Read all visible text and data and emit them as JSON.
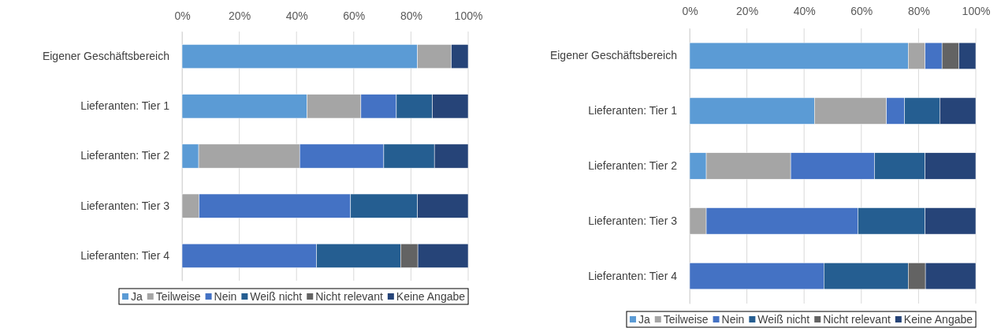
{
  "chart_data": [
    {
      "type": "bar",
      "orientation": "horizontal",
      "stacked": true,
      "grid": "x",
      "legend": "bottom",
      "categories": [
        "Eigener Geschäftsbereich",
        "Lieferanten: Tier 1",
        "Lieferanten: Tier 2",
        "Lieferanten: Tier 3",
        "Lieferanten: Tier 4"
      ],
      "xlim": [
        0,
        100
      ],
      "xticks": [
        {
          "value": 0,
          "label": "0%"
        },
        {
          "value": 20,
          "label": "20%"
        },
        {
          "value": 40,
          "label": "40%"
        },
        {
          "value": 60,
          "label": "60%"
        },
        {
          "value": 80,
          "label": "80%"
        },
        {
          "value": 100,
          "label": "100%"
        }
      ],
      "series": [
        {
          "name": "Ja",
          "color": "#5b9bd5",
          "values": [
            82.3,
            43.7,
            5.8,
            0,
            0
          ]
        },
        {
          "name": "Teilweise",
          "color": "#a5a5a5",
          "values": [
            11.8,
            18.8,
            35.3,
            5.9,
            0
          ]
        },
        {
          "name": "Nein",
          "color": "#4472c4",
          "values": [
            0,
            12.4,
            29.4,
            53.0,
            47.0
          ]
        },
        {
          "name": "Weiß nicht",
          "color": "#255e91",
          "values": [
            0,
            12.6,
            17.7,
            23.4,
            29.4
          ]
        },
        {
          "name": "Nicht relevant",
          "color": "#636363",
          "values": [
            0,
            0,
            0,
            0,
            6.0
          ]
        },
        {
          "name": "Keine Angabe",
          "color": "#264478",
          "values": [
            5.9,
            12.5,
            11.8,
            17.7,
            17.6
          ]
        }
      ]
    },
    {
      "type": "bar",
      "orientation": "horizontal",
      "stacked": true,
      "grid": "x",
      "legend": "bottom",
      "categories": [
        "Eigener Geschäftsbereich",
        "Lieferanten: Tier 1",
        "Lieferanten: Tier 2",
        "Lieferanten: Tier 3",
        "Lieferanten: Tier 4"
      ],
      "xlim": [
        0,
        100
      ],
      "xticks": [
        {
          "value": 0,
          "label": "0%"
        },
        {
          "value": 20,
          "label": "20%"
        },
        {
          "value": 40,
          "label": "40%"
        },
        {
          "value": 60,
          "label": "60%"
        },
        {
          "value": 80,
          "label": "80%"
        },
        {
          "value": 100,
          "label": "100%"
        }
      ],
      "series": [
        {
          "name": "Ja",
          "color": "#5b9bd5",
          "values": [
            76.4,
            43.6,
            5.8,
            0,
            0
          ]
        },
        {
          "name": "Teilweise",
          "color": "#a5a5a5",
          "values": [
            5.9,
            25.2,
            29.5,
            5.8,
            0
          ]
        },
        {
          "name": "Nein",
          "color": "#4472c4",
          "values": [
            5.9,
            6.3,
            29.3,
            53.0,
            46.9
          ]
        },
        {
          "name": "Weiß nicht",
          "color": "#255e91",
          "values": [
            0,
            12.3,
            17.7,
            23.5,
            29.5
          ]
        },
        {
          "name": "Nicht relevant",
          "color": "#636363",
          "values": [
            5.9,
            0,
            0,
            0,
            6.0
          ]
        },
        {
          "name": "Keine Angabe",
          "color": "#264478",
          "values": [
            5.9,
            12.6,
            17.7,
            17.7,
            17.6
          ]
        }
      ]
    }
  ]
}
